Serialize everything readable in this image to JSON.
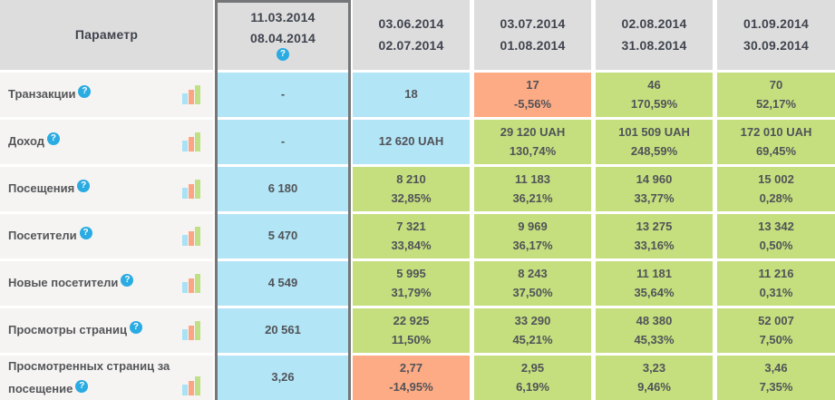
{
  "table": {
    "param_header": "Параметр",
    "help_icon_glyph": "?",
    "colors": {
      "header_bg": "#dedddd",
      "label_bg": "#f5f4f2",
      "baseline_cell": "#b2e5f6",
      "positive_cell": "#c5df7e",
      "negative_cell": "#fdab85",
      "selected_border": "#757678",
      "help_icon": "#2aabe2",
      "bar_blue": "#a9e1f5",
      "bar_orange": "#fba584",
      "bar_green": "#c0e086"
    },
    "periods": [
      {
        "start": "11.03.2014",
        "end": "08.04.2014",
        "selected": true,
        "has_help": true
      },
      {
        "start": "03.06.2014",
        "end": "02.07.2014",
        "selected": false,
        "has_help": false
      },
      {
        "start": "03.07.2014",
        "end": "01.08.2014",
        "selected": false,
        "has_help": false
      },
      {
        "start": "02.08.2014",
        "end": "31.08.2014",
        "selected": false,
        "has_help": false
      },
      {
        "start": "01.09.2014",
        "end": "30.09.2014",
        "selected": false,
        "has_help": false
      }
    ],
    "rows": [
      {
        "label": "Транзакции",
        "cells": [
          {
            "value": "-",
            "pct": "",
            "color": "blue"
          },
          {
            "value": "18",
            "pct": "",
            "color": "blue"
          },
          {
            "value": "17",
            "pct": "-5,56%",
            "color": "orange"
          },
          {
            "value": "46",
            "pct": "170,59%",
            "color": "green"
          },
          {
            "value": "70",
            "pct": "52,17%",
            "color": "green"
          }
        ]
      },
      {
        "label": "Доход",
        "cells": [
          {
            "value": "-",
            "pct": "",
            "color": "blue"
          },
          {
            "value": "12 620 UAH",
            "pct": "",
            "color": "blue"
          },
          {
            "value": "29 120 UAH",
            "pct": "130,74%",
            "color": "green"
          },
          {
            "value": "101 509 UAH",
            "pct": "248,59%",
            "color": "green"
          },
          {
            "value": "172 010 UAH",
            "pct": "69,45%",
            "color": "green"
          }
        ]
      },
      {
        "label": "Посещения",
        "cells": [
          {
            "value": "6 180",
            "pct": "",
            "color": "blue"
          },
          {
            "value": "8 210",
            "pct": "32,85%",
            "color": "green"
          },
          {
            "value": "11 183",
            "pct": "36,21%",
            "color": "green"
          },
          {
            "value": "14 960",
            "pct": "33,77%",
            "color": "green"
          },
          {
            "value": "15 002",
            "pct": "0,28%",
            "color": "green"
          }
        ]
      },
      {
        "label": "Посетители",
        "cells": [
          {
            "value": "5 470",
            "pct": "",
            "color": "blue"
          },
          {
            "value": "7 321",
            "pct": "33,84%",
            "color": "green"
          },
          {
            "value": "9 969",
            "pct": "36,17%",
            "color": "green"
          },
          {
            "value": "13 275",
            "pct": "33,16%",
            "color": "green"
          },
          {
            "value": "13 342",
            "pct": "0,50%",
            "color": "green"
          }
        ]
      },
      {
        "label": "Новые посетители",
        "cells": [
          {
            "value": "4 549",
            "pct": "",
            "color": "blue"
          },
          {
            "value": "5 995",
            "pct": "31,79%",
            "color": "green"
          },
          {
            "value": "8 243",
            "pct": "37,50%",
            "color": "green"
          },
          {
            "value": "11 181",
            "pct": "35,64%",
            "color": "green"
          },
          {
            "value": "11 216",
            "pct": "0,31%",
            "color": "green"
          }
        ]
      },
      {
        "label": "Просмотры страниц",
        "cells": [
          {
            "value": "20 561",
            "pct": "",
            "color": "blue"
          },
          {
            "value": "22 925",
            "pct": "11,50%",
            "color": "green"
          },
          {
            "value": "33 290",
            "pct": "45,21%",
            "color": "green"
          },
          {
            "value": "48 380",
            "pct": "45,33%",
            "color": "green"
          },
          {
            "value": "52 007",
            "pct": "7,50%",
            "color": "green"
          }
        ]
      },
      {
        "label": "Просмотренных страниц за посещение",
        "cells": [
          {
            "value": "3,26",
            "pct": "",
            "color": "blue"
          },
          {
            "value": "2,77",
            "pct": "-14,95%",
            "color": "orange"
          },
          {
            "value": "2,95",
            "pct": "6,19%",
            "color": "green"
          },
          {
            "value": "3,23",
            "pct": "9,46%",
            "color": "green"
          },
          {
            "value": "3,46",
            "pct": "7,35%",
            "color": "green"
          }
        ]
      }
    ]
  }
}
